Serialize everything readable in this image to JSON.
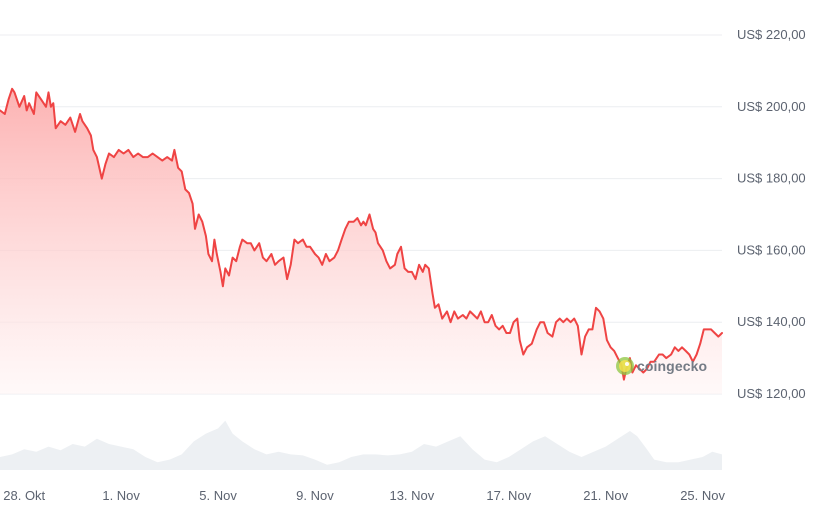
{
  "chart_data": {
    "type": "area",
    "currency_prefix": "US$ ",
    "line_color": "#ef4444",
    "fill_color_top": "#fca5a5",
    "fill_color_bottom": "#fff5f5",
    "volume_color": "#edf0f3",
    "grid_color": "#eceef1",
    "ylim": [
      110,
      225
    ],
    "y_ticks": [
      {
        "value": 220,
        "label": "US$ 220,00"
      },
      {
        "value": 200,
        "label": "US$ 200,00"
      },
      {
        "value": 180,
        "label": "US$ 180,00"
      },
      {
        "value": 160,
        "label": "US$ 160,00"
      },
      {
        "value": 140,
        "label": "US$ 140,00"
      },
      {
        "value": 120,
        "label": "US$ 120,00"
      }
    ],
    "x_ticks": [
      {
        "day": 1,
        "label": "28. Okt"
      },
      {
        "day": 5,
        "label": "1. Nov"
      },
      {
        "day": 9,
        "label": "5. Nov"
      },
      {
        "day": 13,
        "label": "9. Nov"
      },
      {
        "day": 17,
        "label": "13. Nov"
      },
      {
        "day": 21,
        "label": "17. Nov"
      },
      {
        "day": 25,
        "label": "21. Nov"
      },
      {
        "day": 29,
        "label": "25. Nov"
      }
    ],
    "x_range": [
      0,
      29.8
    ],
    "price_series": [
      [
        0.0,
        199
      ],
      [
        0.2,
        198
      ],
      [
        0.35,
        202
      ],
      [
        0.5,
        205
      ],
      [
        0.6,
        204
      ],
      [
        0.8,
        200
      ],
      [
        1.0,
        203
      ],
      [
        1.1,
        199
      ],
      [
        1.2,
        201
      ],
      [
        1.4,
        198
      ],
      [
        1.5,
        204
      ],
      [
        1.7,
        202
      ],
      [
        1.9,
        200
      ],
      [
        2.0,
        204
      ],
      [
        2.1,
        200
      ],
      [
        2.2,
        201
      ],
      [
        2.3,
        194
      ],
      [
        2.5,
        196
      ],
      [
        2.7,
        195
      ],
      [
        2.9,
        197
      ],
      [
        3.1,
        193
      ],
      [
        3.3,
        198
      ],
      [
        3.4,
        196
      ],
      [
        3.6,
        194
      ],
      [
        3.75,
        192
      ],
      [
        3.85,
        188
      ],
      [
        4.0,
        186
      ],
      [
        4.2,
        180
      ],
      [
        4.35,
        184
      ],
      [
        4.5,
        187
      ],
      [
        4.7,
        186
      ],
      [
        4.9,
        188
      ],
      [
        5.1,
        187
      ],
      [
        5.3,
        188
      ],
      [
        5.5,
        186
      ],
      [
        5.7,
        187
      ],
      [
        5.9,
        186
      ],
      [
        6.1,
        186
      ],
      [
        6.3,
        187
      ],
      [
        6.5,
        186
      ],
      [
        6.7,
        185
      ],
      [
        6.9,
        186
      ],
      [
        7.1,
        185
      ],
      [
        7.2,
        188
      ],
      [
        7.35,
        183
      ],
      [
        7.5,
        182
      ],
      [
        7.65,
        177
      ],
      [
        7.8,
        176
      ],
      [
        7.95,
        173
      ],
      [
        8.05,
        166
      ],
      [
        8.2,
        170
      ],
      [
        8.35,
        168
      ],
      [
        8.5,
        164
      ],
      [
        8.6,
        159
      ],
      [
        8.75,
        157
      ],
      [
        8.85,
        163
      ],
      [
        8.95,
        159
      ],
      [
        9.1,
        154
      ],
      [
        9.2,
        150
      ],
      [
        9.3,
        155
      ],
      [
        9.45,
        153
      ],
      [
        9.6,
        158
      ],
      [
        9.75,
        157
      ],
      [
        9.9,
        161
      ],
      [
        10.0,
        163
      ],
      [
        10.2,
        162
      ],
      [
        10.35,
        162
      ],
      [
        10.5,
        160
      ],
      [
        10.7,
        162
      ],
      [
        10.85,
        158
      ],
      [
        11.0,
        157
      ],
      [
        11.2,
        159
      ],
      [
        11.35,
        156
      ],
      [
        11.5,
        157
      ],
      [
        11.7,
        158
      ],
      [
        11.85,
        152
      ],
      [
        12.0,
        156
      ],
      [
        12.15,
        163
      ],
      [
        12.3,
        162
      ],
      [
        12.5,
        163
      ],
      [
        12.65,
        161
      ],
      [
        12.8,
        161
      ],
      [
        13.0,
        159
      ],
      [
        13.15,
        158
      ],
      [
        13.3,
        156
      ],
      [
        13.45,
        159
      ],
      [
        13.6,
        157
      ],
      [
        13.8,
        158
      ],
      [
        13.95,
        160
      ],
      [
        14.1,
        163
      ],
      [
        14.25,
        166
      ],
      [
        14.4,
        168
      ],
      [
        14.6,
        168
      ],
      [
        14.75,
        169
      ],
      [
        14.9,
        167
      ],
      [
        15.0,
        168
      ],
      [
        15.1,
        167
      ],
      [
        15.25,
        170
      ],
      [
        15.4,
        166
      ],
      [
        15.5,
        165
      ],
      [
        15.6,
        162
      ],
      [
        15.8,
        160
      ],
      [
        15.95,
        157
      ],
      [
        16.1,
        155
      ],
      [
        16.3,
        156
      ],
      [
        16.4,
        159
      ],
      [
        16.55,
        161
      ],
      [
        16.7,
        155
      ],
      [
        16.85,
        154
      ],
      [
        17.0,
        154
      ],
      [
        17.15,
        152
      ],
      [
        17.3,
        156
      ],
      [
        17.45,
        154
      ],
      [
        17.55,
        156
      ],
      [
        17.7,
        155
      ],
      [
        17.85,
        148
      ],
      [
        17.95,
        144
      ],
      [
        18.1,
        145
      ],
      [
        18.25,
        141
      ],
      [
        18.45,
        143
      ],
      [
        18.6,
        140
      ],
      [
        18.75,
        143
      ],
      [
        18.9,
        141
      ],
      [
        19.1,
        142
      ],
      [
        19.25,
        141
      ],
      [
        19.4,
        143
      ],
      [
        19.55,
        142
      ],
      [
        19.7,
        141
      ],
      [
        19.85,
        143
      ],
      [
        20.0,
        140
      ],
      [
        20.15,
        140
      ],
      [
        20.3,
        142
      ],
      [
        20.45,
        139
      ],
      [
        20.6,
        138
      ],
      [
        20.75,
        139
      ],
      [
        20.9,
        137
      ],
      [
        21.05,
        137
      ],
      [
        21.2,
        140
      ],
      [
        21.35,
        141
      ],
      [
        21.45,
        135
      ],
      [
        21.6,
        131
      ],
      [
        21.75,
        133
      ],
      [
        21.95,
        134
      ],
      [
        22.15,
        138
      ],
      [
        22.3,
        140
      ],
      [
        22.45,
        140
      ],
      [
        22.6,
        137
      ],
      [
        22.8,
        136
      ],
      [
        22.95,
        140
      ],
      [
        23.1,
        141
      ],
      [
        23.25,
        140
      ],
      [
        23.4,
        141
      ],
      [
        23.55,
        140
      ],
      [
        23.7,
        141
      ],
      [
        23.85,
        139
      ],
      [
        24.0,
        131
      ],
      [
        24.15,
        136
      ],
      [
        24.3,
        138
      ],
      [
        24.45,
        138
      ],
      [
        24.6,
        144
      ],
      [
        24.75,
        143
      ],
      [
        24.9,
        141
      ],
      [
        25.05,
        135
      ],
      [
        25.2,
        133
      ],
      [
        25.35,
        132
      ],
      [
        25.5,
        130
      ],
      [
        25.65,
        128
      ],
      [
        25.75,
        124
      ],
      [
        25.85,
        127
      ],
      [
        26.0,
        130
      ],
      [
        26.1,
        126
      ],
      [
        26.25,
        128
      ],
      [
        26.4,
        127
      ],
      [
        26.55,
        126
      ],
      [
        26.7,
        127
      ],
      [
        26.85,
        129
      ],
      [
        27.0,
        129
      ],
      [
        27.2,
        131
      ],
      [
        27.35,
        131
      ],
      [
        27.5,
        130
      ],
      [
        27.7,
        131
      ],
      [
        27.85,
        133
      ],
      [
        28.0,
        132
      ],
      [
        28.15,
        133
      ],
      [
        28.3,
        132
      ],
      [
        28.45,
        131
      ],
      [
        28.6,
        129
      ],
      [
        28.75,
        131
      ],
      [
        28.9,
        134
      ],
      [
        29.05,
        138
      ],
      [
        29.2,
        138
      ],
      [
        29.35,
        138
      ],
      [
        29.5,
        137
      ],
      [
        29.65,
        136
      ],
      [
        29.8,
        137
      ]
    ],
    "volume_series": [
      [
        0.0,
        0.25
      ],
      [
        0.5,
        0.3
      ],
      [
        1.0,
        0.4
      ],
      [
        1.5,
        0.35
      ],
      [
        2.0,
        0.45
      ],
      [
        2.5,
        0.38
      ],
      [
        3.0,
        0.5
      ],
      [
        3.5,
        0.45
      ],
      [
        4.0,
        0.6
      ],
      [
        4.5,
        0.5
      ],
      [
        5.0,
        0.45
      ],
      [
        5.5,
        0.4
      ],
      [
        6.0,
        0.25
      ],
      [
        6.5,
        0.15
      ],
      [
        7.0,
        0.2
      ],
      [
        7.5,
        0.3
      ],
      [
        8.0,
        0.55
      ],
      [
        8.5,
        0.7
      ],
      [
        9.0,
        0.8
      ],
      [
        9.3,
        0.95
      ],
      [
        9.6,
        0.7
      ],
      [
        10.0,
        0.55
      ],
      [
        10.5,
        0.4
      ],
      [
        11.0,
        0.3
      ],
      [
        11.5,
        0.35
      ],
      [
        12.0,
        0.3
      ],
      [
        12.5,
        0.28
      ],
      [
        13.0,
        0.2
      ],
      [
        13.5,
        0.1
      ],
      [
        14.0,
        0.15
      ],
      [
        14.5,
        0.25
      ],
      [
        15.0,
        0.3
      ],
      [
        15.5,
        0.3
      ],
      [
        16.0,
        0.28
      ],
      [
        16.5,
        0.3
      ],
      [
        17.0,
        0.35
      ],
      [
        17.5,
        0.5
      ],
      [
        18.0,
        0.45
      ],
      [
        18.5,
        0.55
      ],
      [
        19.0,
        0.65
      ],
      [
        19.5,
        0.4
      ],
      [
        20.0,
        0.2
      ],
      [
        20.5,
        0.15
      ],
      [
        21.0,
        0.25
      ],
      [
        21.5,
        0.4
      ],
      [
        22.0,
        0.55
      ],
      [
        22.5,
        0.65
      ],
      [
        23.0,
        0.5
      ],
      [
        23.5,
        0.35
      ],
      [
        24.0,
        0.25
      ],
      [
        24.5,
        0.35
      ],
      [
        25.0,
        0.45
      ],
      [
        25.5,
        0.6
      ],
      [
        26.0,
        0.75
      ],
      [
        26.3,
        0.65
      ],
      [
        26.7,
        0.4
      ],
      [
        27.0,
        0.2
      ],
      [
        27.5,
        0.15
      ],
      [
        28.0,
        0.15
      ],
      [
        28.5,
        0.2
      ],
      [
        29.0,
        0.25
      ],
      [
        29.4,
        0.35
      ],
      [
        29.8,
        0.3
      ]
    ]
  },
  "watermark": {
    "text": "coingecko",
    "icon": "coingecko-logo-icon"
  }
}
